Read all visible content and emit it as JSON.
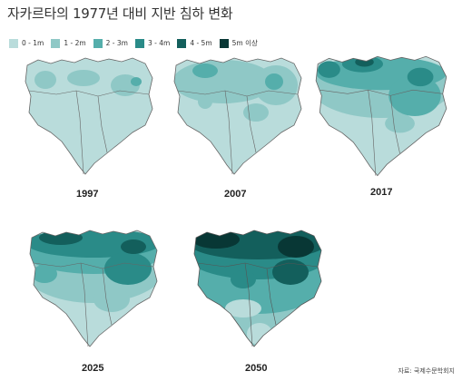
{
  "title": "자카르타의 1977년 대비 지반 침하 변화",
  "legend": [
    {
      "label": "0 - 1m",
      "color": "#b9dcdb"
    },
    {
      "label": "1 - 2m",
      "color": "#8fc8c6"
    },
    {
      "label": "2 - 3m",
      "color": "#55aeab"
    },
    {
      "label": "3 - 4m",
      "color": "#2a8b88"
    },
    {
      "label": "4 - 5m",
      "color": "#135f5c"
    },
    {
      "label": "5m 이상",
      "color": "#083735"
    }
  ],
  "maps": [
    {
      "year": "1997"
    },
    {
      "year": "2007"
    },
    {
      "year": "2017"
    },
    {
      "year": "2025"
    },
    {
      "year": "2050"
    }
  ],
  "source": "자료: 국제수문학회지"
}
